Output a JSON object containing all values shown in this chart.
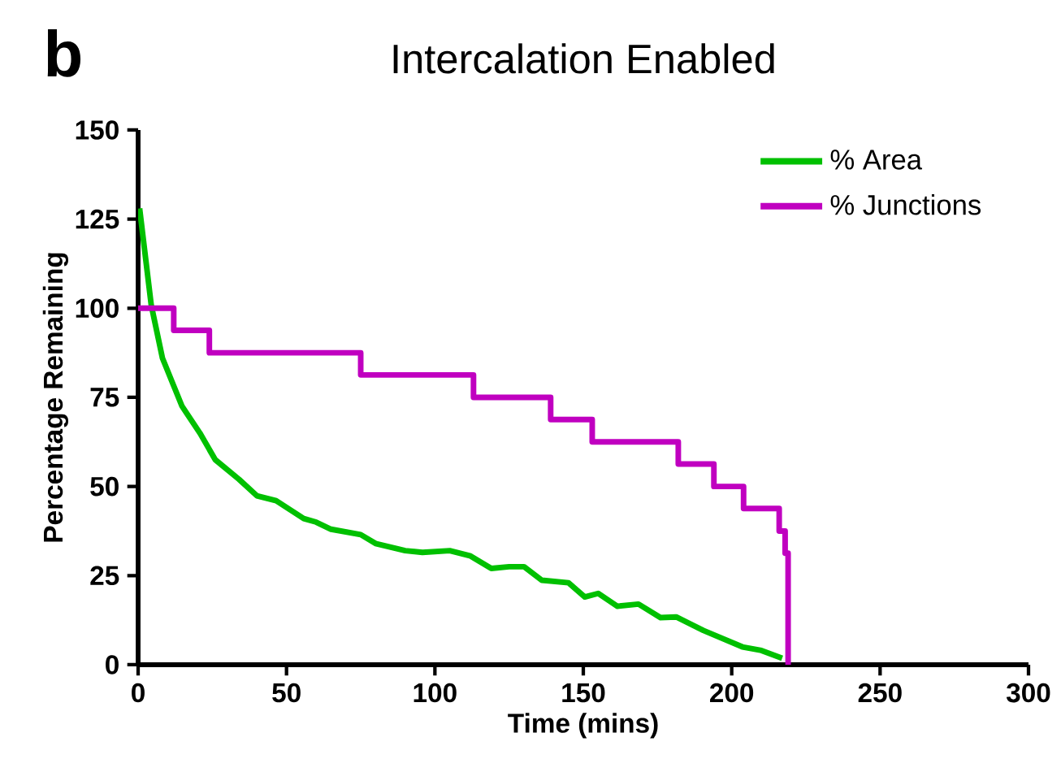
{
  "chart_data": {
    "type": "line",
    "title": "Intercalation Enabled",
    "xlabel": "Time (mins)",
    "ylabel": "Percentage Remaining",
    "annotations": [
      "b"
    ],
    "xlim": [
      0,
      300
    ],
    "xticks": [
      0,
      50,
      100,
      150,
      200,
      250,
      300
    ],
    "ylim": [
      0,
      150
    ],
    "yticks": [
      0,
      25,
      50,
      75,
      100,
      125,
      150
    ],
    "grid": false,
    "legend": "top right",
    "marker": "none",
    "line_style": "solid",
    "series": [
      {
        "name": "% Area",
        "color": "#00c000",
        "x": [
          0.5,
          4.4,
          8.2,
          14.8,
          20.8,
          26,
          34,
          40,
          46.5,
          55.8,
          60,
          65,
          75,
          80,
          90,
          95.8,
          105,
          112,
          119,
          125,
          130,
          136,
          145,
          150.5,
          155,
          161.5,
          168.6,
          176,
          181.3,
          190.5,
          203.6,
          210,
          217
        ],
        "values": [
          128,
          101,
          86,
          72.5,
          65,
          57.5,
          52,
          47.4,
          46,
          41,
          40,
          38,
          36.5,
          34,
          32,
          31.5,
          32,
          30.5,
          27,
          27.5,
          27.5,
          23.7,
          23,
          19,
          20,
          16.4,
          17,
          13.2,
          13.4,
          9.6,
          5,
          4,
          1.8
        ]
      },
      {
        "name": "% Junctions",
        "type": "step",
        "color": "#c000c0",
        "x": [
          0,
          12,
          24,
          75,
          113,
          139,
          153,
          182,
          194,
          204,
          216,
          218,
          219
        ],
        "values": [
          100,
          93.8,
          87.5,
          81.3,
          75,
          68.8,
          62.5,
          56.3,
          50,
          43.8,
          37.5,
          31.3,
          0
        ]
      }
    ]
  }
}
